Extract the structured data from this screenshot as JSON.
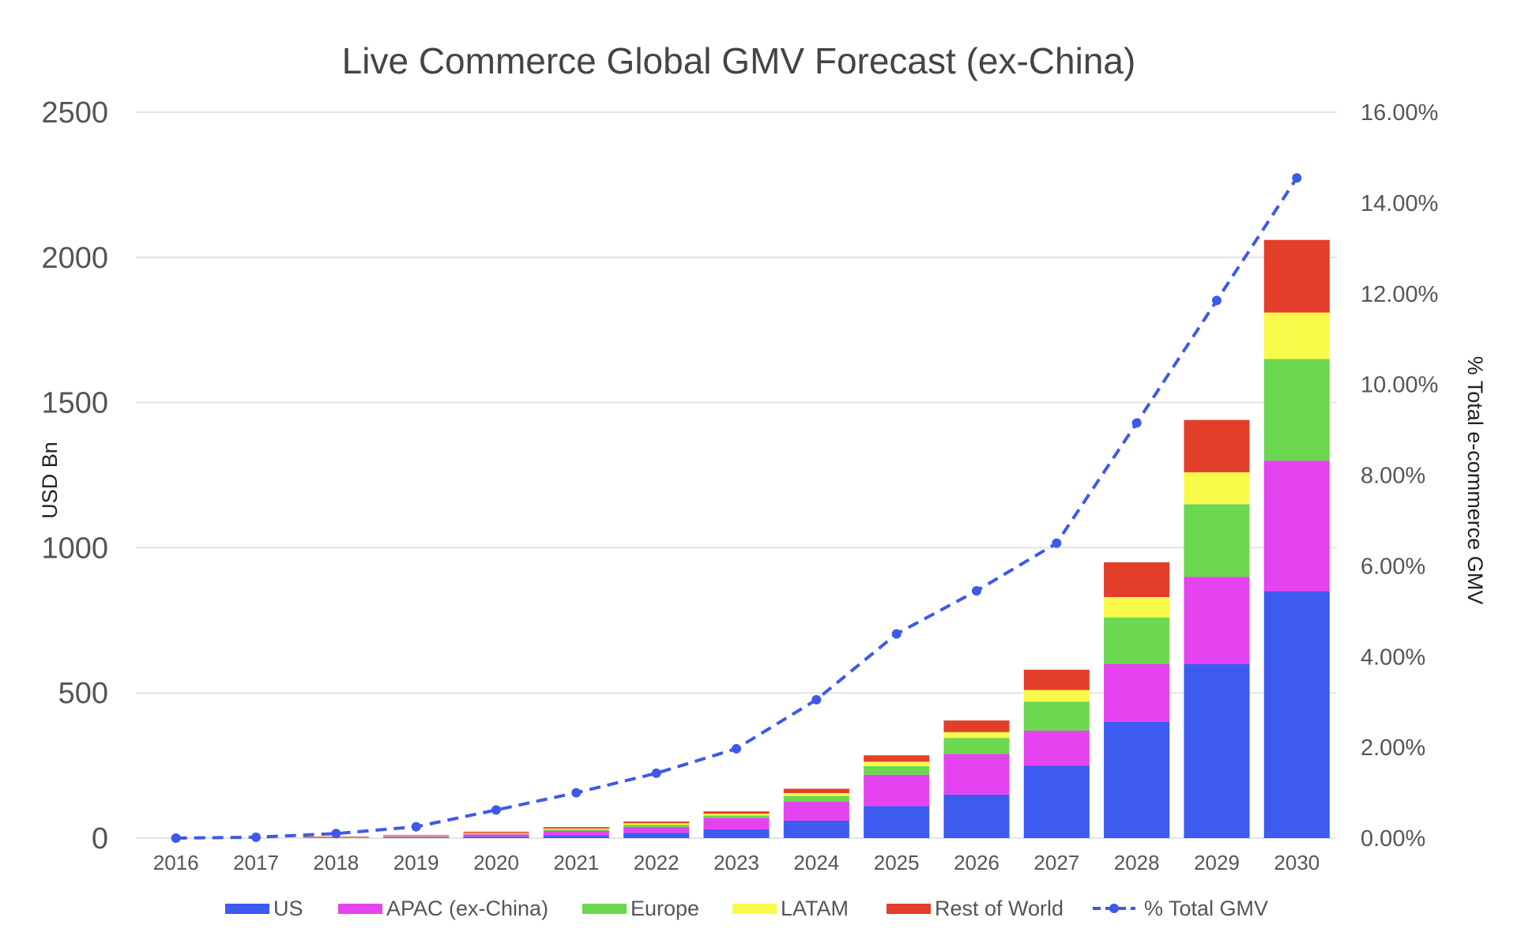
{
  "chart_data": {
    "type": "bar",
    "stacked": true,
    "title": "Live Commerce Global GMV Forecast (ex-China)",
    "xlabel": "",
    "ylabel": "USD Bn",
    "y2label": "% Total e-commerce GMV",
    "ylim": [
      0,
      2500
    ],
    "y_ticks": [
      "0",
      "500",
      "1000",
      "1500",
      "2000",
      "2500"
    ],
    "y2lim": [
      0,
      16
    ],
    "y2_ticks": [
      "0.00%",
      "2.00%",
      "4.00%",
      "6.00%",
      "8.00%",
      "10.00%",
      "12.00%",
      "14.00%",
      "16.00%"
    ],
    "grid": true,
    "legend_position": "bottom",
    "categories": [
      "2016",
      "2017",
      "2018",
      "2019",
      "2020",
      "2021",
      "2022",
      "2023",
      "2024",
      "2025",
      "2026",
      "2027",
      "2028",
      "2029",
      "2030"
    ],
    "series": [
      {
        "name": "US",
        "color": "#3d5af1",
        "values": [
          0,
          0,
          1,
          2,
          5,
          10,
          18,
          30,
          60,
          110,
          150,
          250,
          400,
          600,
          850
        ]
      },
      {
        "name": "APAC (ex-China)",
        "color": "#e543ef",
        "values": [
          0,
          0,
          1,
          3,
          8,
          15,
          20,
          40,
          65,
          108,
          140,
          120,
          200,
          300,
          450
        ]
      },
      {
        "name": "Europe",
        "color": "#6bd84f",
        "values": [
          0,
          0,
          1,
          1,
          3,
          5,
          8,
          8,
          20,
          30,
          55,
          100,
          160,
          250,
          350
        ]
      },
      {
        "name": "LATAM",
        "color": "#f9f94a",
        "values": [
          0,
          0,
          0,
          1,
          2,
          3,
          5,
          6,
          10,
          15,
          20,
          40,
          70,
          110,
          160
        ]
      },
      {
        "name": "Rest of World",
        "color": "#e23e29",
        "values": [
          0,
          0,
          2,
          3,
          4,
          5,
          6,
          8,
          15,
          22,
          40,
          70,
          120,
          180,
          250
        ]
      }
    ],
    "line_series": {
      "name": "% Total GMV",
      "color": "#3d5ae6",
      "axis": "right",
      "values": [
        0.0,
        0.02,
        0.1,
        0.25,
        0.62,
        1.0,
        1.43,
        1.97,
        3.05,
        4.5,
        5.45,
        6.5,
        9.15,
        11.85,
        14.55
      ]
    }
  }
}
